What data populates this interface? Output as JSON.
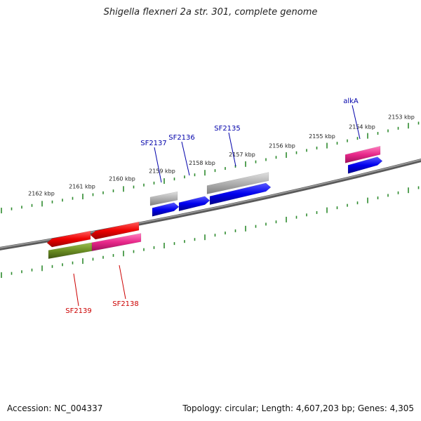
{
  "title": "Shigella flexneri 2a str. 301, complete genome",
  "footer": {
    "accession": "Accession: NC_004337",
    "summary": "Topology: circular; Length: 4,607,203 bp; Genes: 4,305"
  },
  "ticks": [
    "2153 kbp",
    "2154 kbp",
    "2155 kbp",
    "2156 kbp",
    "2157 kbp",
    "2158 kbp",
    "2159 kbp",
    "2160 kbp",
    "2161 kbp",
    "2162 kbp"
  ],
  "gene_labels": [
    {
      "name": "alkA",
      "strand": "forward"
    },
    {
      "name": "SF2135",
      "strand": "forward"
    },
    {
      "name": "SF2136",
      "strand": "forward"
    },
    {
      "name": "SF2137",
      "strand": "forward"
    },
    {
      "name": "SF2138",
      "strand": "reverse"
    },
    {
      "name": "SF2139",
      "strand": "reverse"
    }
  ],
  "colors": {
    "backbone": "#808080",
    "tick": "#2e8b2e",
    "forward_label": "#0000aa",
    "reverse_label": "#cc0000",
    "cds_forward": "#0000ee",
    "cds_reverse": "#ee0000",
    "pink": "#e8288a",
    "gray": "#a8a8a8",
    "olive": "#6b8e23"
  }
}
